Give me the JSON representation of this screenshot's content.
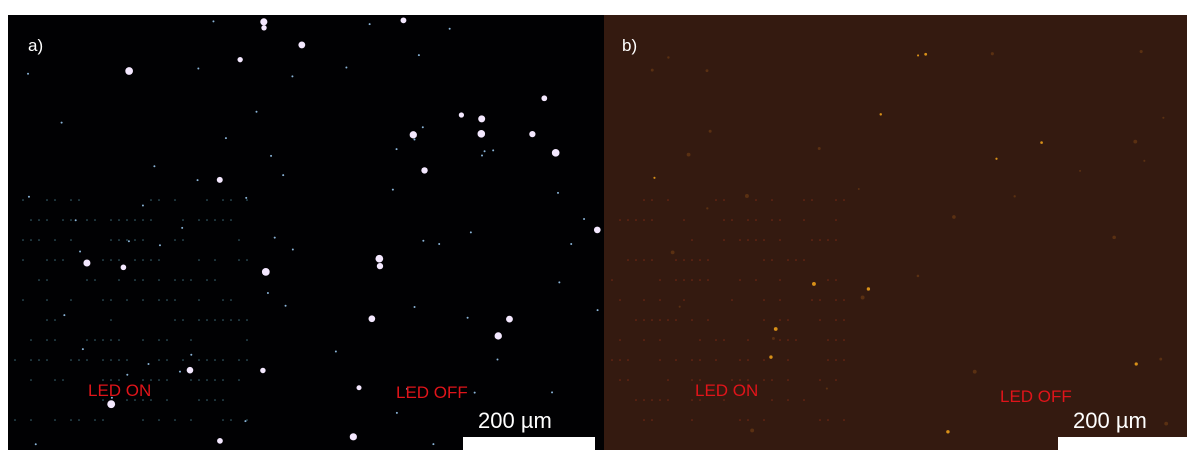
{
  "panels": [
    {
      "label": "a)",
      "annotations": [
        "LED ON",
        "LED OFF"
      ],
      "scale_bar": "200 µm"
    },
    {
      "label": "b)",
      "annotations": [
        "LED ON",
        "LED OFF"
      ],
      "scale_bar": "200 µm"
    }
  ]
}
